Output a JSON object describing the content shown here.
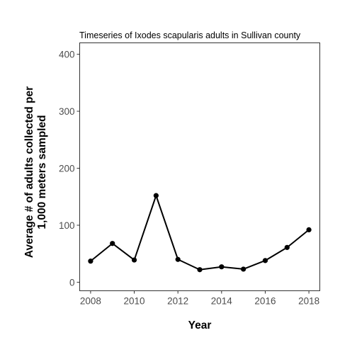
{
  "chart_data": {
    "type": "line",
    "title": "Timeseries of Ixodes scapularis adults in Sullivan county",
    "xlabel": "Year",
    "ylabel_lines": [
      "Average # of adults collected per",
      "1,000 meters sampled"
    ],
    "x": [
      2008,
      2009,
      2010,
      2011,
      2012,
      2013,
      2014,
      2015,
      2016,
      2017,
      2018
    ],
    "values": [
      37,
      68,
      39,
      152,
      40,
      22,
      27,
      23,
      38,
      61,
      92
    ],
    "xlim": [
      2007.5,
      2018.5
    ],
    "ylim": [
      -15,
      420
    ],
    "xticks": [
      "2008",
      "2010",
      "2012",
      "2014",
      "2016",
      "2018"
    ],
    "xtick_values": [
      2008,
      2010,
      2012,
      2014,
      2016,
      2018
    ],
    "yticks": [
      "0",
      "100",
      "200",
      "300",
      "400"
    ],
    "ytick_values": [
      0,
      100,
      200,
      300,
      400
    ],
    "grid": false,
    "line_color": "#000000",
    "marker": "circle"
  }
}
